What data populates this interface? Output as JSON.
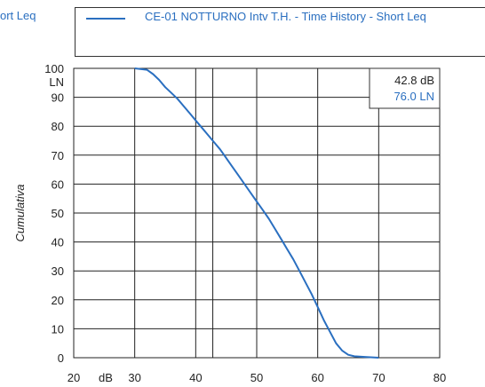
{
  "header": {
    "top_left": "ort Leq",
    "legend_label": "CE-01 NOTTURNO Intv T.H. - Time History - Short Leq"
  },
  "readout": {
    "line1": "42.8 dB",
    "line2": "76.0 LN"
  },
  "colors": {
    "series": "#2a6fc0",
    "grid": "#222222"
  },
  "chart_data": {
    "type": "line",
    "xlabel": "dB",
    "ylabel": "Cumulativa",
    "ylabel_top": "LN",
    "xlim": [
      20,
      80
    ],
    "ylim": [
      0,
      100
    ],
    "x_ticks": [
      20,
      30,
      40,
      50,
      60,
      70,
      80
    ],
    "y_ticks": [
      0,
      10,
      20,
      30,
      40,
      50,
      60,
      70,
      80,
      90,
      100
    ],
    "grid": true,
    "cursor_x": 42.8,
    "series": [
      {
        "values": [
          [
            30,
            100
          ],
          [
            32,
            99.5
          ],
          [
            33,
            98
          ],
          [
            34,
            96
          ],
          [
            35,
            93.5
          ],
          [
            36,
            91.5
          ],
          [
            37,
            89.5
          ],
          [
            38,
            87
          ],
          [
            39,
            84.5
          ],
          [
            40,
            82
          ],
          [
            41,
            79.5
          ],
          [
            42,
            77
          ],
          [
            43,
            74.5
          ],
          [
            44,
            72
          ],
          [
            45,
            69
          ],
          [
            46,
            66
          ],
          [
            47,
            63
          ],
          [
            48,
            60
          ],
          [
            49,
            57
          ],
          [
            50,
            54
          ],
          [
            51,
            51
          ],
          [
            52,
            48
          ],
          [
            53,
            44.5
          ],
          [
            54,
            41
          ],
          [
            55,
            37.5
          ],
          [
            56,
            34
          ],
          [
            57,
            30
          ],
          [
            58,
            26
          ],
          [
            59,
            22
          ],
          [
            60,
            17.5
          ],
          [
            61,
            13
          ],
          [
            62,
            9
          ],
          [
            63,
            5
          ],
          [
            64,
            2.5
          ],
          [
            65,
            1
          ],
          [
            66,
            0.5
          ],
          [
            68,
            0.2
          ],
          [
            70,
            0
          ]
        ]
      }
    ]
  }
}
